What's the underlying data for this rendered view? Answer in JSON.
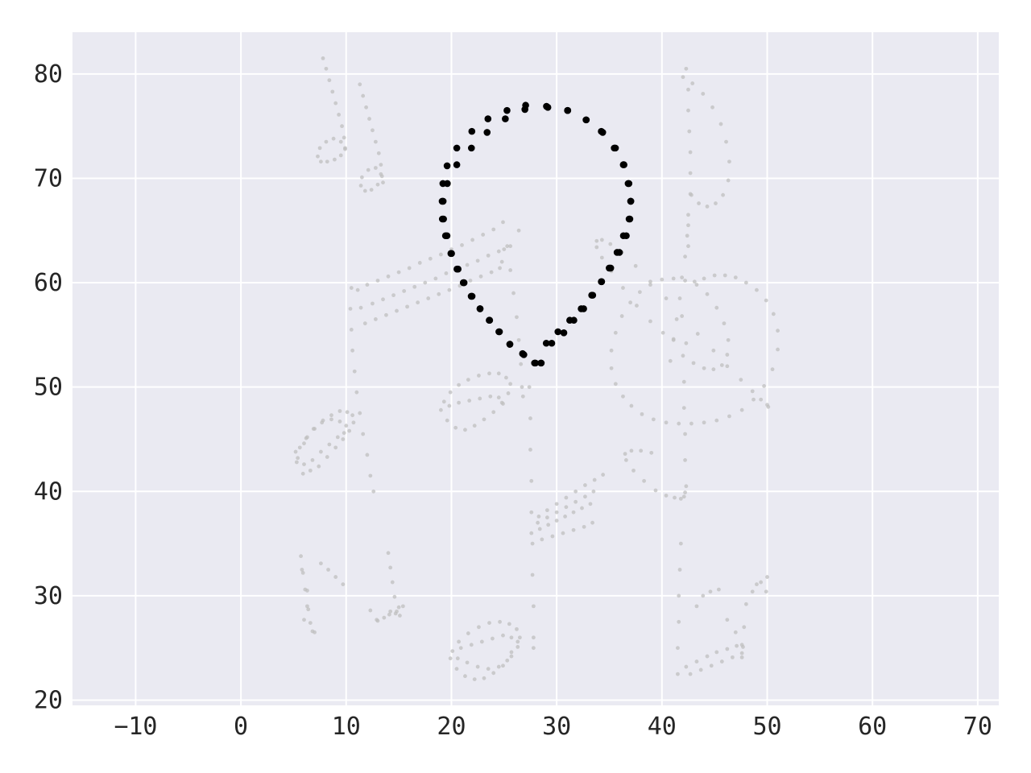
{
  "chart_data": {
    "type": "scatter",
    "title": "",
    "xlabel": "",
    "ylabel": "",
    "xlim": [
      -16,
      72
    ],
    "ylim": [
      19.5,
      84
    ],
    "x_ticks": [
      -10,
      0,
      10,
      20,
      30,
      40,
      50,
      60,
      70
    ],
    "y_ticks": [
      20,
      30,
      40,
      50,
      60,
      70,
      80
    ],
    "x_tick_labels": [
      "−10",
      "0",
      "10",
      "20",
      "30",
      "40",
      "50",
      "60",
      "70"
    ],
    "y_tick_labels": [
      "20",
      "30",
      "40",
      "50",
      "60",
      "70",
      "80"
    ],
    "grid": true,
    "legend": "none",
    "colors": {
      "background": "#eaeaf2",
      "grid": "#ffffff",
      "foreground_points": "#000000",
      "background_points": "#bfbfbf"
    },
    "series": [
      {
        "role": "figure-eight",
        "color": "#000000",
        "x": [
          27.05,
          29.03,
          31.05,
          32.79,
          34.24,
          35.47,
          36.33,
          36.79,
          37.04,
          36.95,
          36.61,
          35.96,
          35.13,
          34.27,
          33.33,
          32.33,
          31.24,
          30.12,
          29.01,
          28.53,
          27.9,
          26.76,
          25.55,
          24.56,
          23.63,
          22.72,
          21.88,
          21.13,
          20.53,
          19.95,
          19.44,
          19.14,
          19.21,
          19.61,
          20.51,
          21.9,
          23.39,
          25.12,
          26.98,
          29.16,
          31.03,
          32.81,
          34.37,
          35.58,
          36.39,
          36.86,
          37.03,
          36.88,
          36.34,
          35.74,
          34.99,
          34.24,
          33.42,
          32.56,
          31.63,
          30.68,
          29.53,
          28.5,
          27.98,
          26.88,
          25.55,
          24.51,
          23.59,
          22.72,
          21.96,
          21.2,
          20.63,
          20.01,
          19.58,
          19.25,
          19.12,
          19.19,
          19.59,
          20.51,
          21.94,
          23.47,
          25.28
        ],
        "y": [
          77.0,
          76.9,
          76.5,
          75.6,
          74.5,
          72.9,
          71.3,
          69.5,
          67.8,
          66.1,
          64.5,
          62.9,
          61.4,
          60.1,
          58.8,
          57.5,
          56.4,
          55.3,
          54.2,
          52.3,
          52.3,
          53.2,
          54.1,
          55.3,
          56.4,
          57.5,
          58.7,
          60.0,
          61.3,
          62.8,
          64.5,
          66.1,
          67.8,
          69.5,
          71.3,
          72.9,
          74.4,
          75.7,
          76.6,
          76.8,
          76.5,
          75.6,
          74.4,
          72.9,
          71.3,
          69.5,
          67.8,
          66.1,
          64.5,
          62.9,
          61.4,
          60.1,
          58.8,
          57.5,
          56.4,
          55.2,
          54.2,
          52.3,
          52.3,
          53.1,
          54.1,
          55.3,
          56.4,
          57.5,
          58.7,
          60.0,
          61.3,
          62.8,
          64.5,
          66.1,
          67.8,
          69.5,
          71.2,
          72.9,
          74.5,
          75.7,
          76.5
        ]
      },
      {
        "role": "music-notes",
        "color": "#bfbfbf",
        "x": [
          7.8,
          8.1,
          8.4,
          8.7,
          9.0,
          9.3,
          9.6,
          9.8,
          9.9,
          9.5,
          8.9,
          8.2,
          7.6,
          7.3,
          7.5,
          8.1,
          8.8,
          9.5,
          9.9,
          11.3,
          11.6,
          11.9,
          12.2,
          12.5,
          12.8,
          13.1,
          13.3,
          13.4,
          13.0,
          12.4,
          11.8,
          11.4,
          11.5,
          12.1,
          12.8,
          13.3,
          13.5,
          10.5,
          10.4,
          10.5,
          10.6,
          10.8,
          11.0,
          11.3,
          11.6,
          12.0,
          12.3,
          12.6,
          11.1,
          12.0,
          13.0,
          14.0,
          15.0,
          16.0,
          17.0,
          18.0,
          19.0,
          20.0,
          21.0,
          22.0,
          23.0,
          24.0,
          24.9,
          11.4,
          12.5,
          13.5,
          14.5,
          15.5,
          16.5,
          17.5,
          18.5,
          19.5,
          20.5,
          21.5,
          22.5,
          23.5,
          24.5,
          25.0,
          11.8,
          12.8,
          13.8,
          14.8,
          15.8,
          16.8,
          17.8,
          18.8,
          19.8,
          20.8,
          21.8,
          22.8,
          23.8,
          24.6,
          25.3,
          25.6,
          25.9,
          26.2,
          26.4,
          26.6,
          26.7,
          26.8,
          24.8,
          25.6,
          26.4,
          5.3,
          5.9,
          6.6,
          7.4,
          8.2,
          9.0,
          9.7,
          10.3,
          10.7,
          10.6,
          10.1,
          9.4,
          8.6,
          7.8,
          7.0,
          6.2,
          5.6,
          5.2,
          5.4,
          6.0,
          6.8,
          7.6,
          8.4,
          9.2,
          9.8,
          10.0,
          9.4,
          8.6,
          7.7,
          6.9,
          6.3,
          6.0,
          19.0,
          19.6,
          20.4,
          21.3,
          22.2,
          23.1,
          24.0,
          24.8,
          25.4,
          25.6,
          25.2,
          24.5,
          23.6,
          22.6,
          21.6,
          20.7,
          19.9,
          19.3,
          19.8,
          20.7,
          21.7,
          22.7,
          23.7,
          24.5,
          24.9,
          27.4,
          27.5,
          27.5,
          27.6,
          27.6,
          27.7,
          27.7,
          27.8,
          27.8,
          27.8,
          28.3,
          29.1,
          30.0,
          30.9,
          31.8,
          32.7,
          33.6,
          34.4,
          28.2,
          29.1,
          30.0,
          30.9,
          31.8,
          32.7,
          33.5,
          27.6,
          28.4,
          29.2,
          30.0,
          30.8,
          31.6,
          32.4,
          33.2,
          28.6,
          29.6,
          30.6,
          31.6,
          32.6,
          33.4,
          19.9,
          20.5,
          21.3,
          22.2,
          23.1,
          24.0,
          24.9,
          25.7,
          26.3,
          26.5,
          26.2,
          25.5,
          24.6,
          23.6,
          22.6,
          21.6,
          20.7,
          20.1,
          20.6,
          21.5,
          22.5,
          23.5,
          24.5,
          25.3,
          25.7,
          20.9,
          21.9,
          22.9,
          23.9,
          24.9,
          25.7,
          26.3,
          42.3,
          42.5,
          42.5,
          42.6,
          42.7,
          42.7,
          42.7,
          42.5,
          42.4,
          42.2,
          41.9,
          41.7,
          41.4,
          41.1,
          40.8,
          42.0,
          42.9,
          43.9,
          44.8,
          45.6,
          46.1,
          46.4,
          46.3,
          45.8,
          45.1,
          44.3,
          43.5,
          42.8,
          42.5,
          42.5,
          43.1,
          44.0,
          45.0,
          46.0,
          47.0,
          48.0,
          49.0,
          49.9,
          50.6,
          51.0,
          51.0,
          50.5,
          49.7,
          48.7,
          47.6,
          46.4,
          45.2,
          44.0,
          42.8,
          41.6,
          40.4,
          39.2,
          38.1,
          37.1,
          36.3,
          35.6,
          35.2,
          35.2,
          35.6,
          36.2,
          37.0,
          37.9,
          38.9,
          40.0,
          41.1,
          42.2,
          43.3,
          44.3,
          45.2,
          45.9,
          46.3,
          46.2,
          45.7,
          44.9,
          44.0,
          43.0,
          42.3,
          41.1,
          40.1,
          38.9,
          37.6,
          36.3,
          35.2,
          34.3,
          33.8,
          33.8,
          34.3,
          35.1,
          36.2,
          37.5,
          38.9,
          40.4,
          41.9,
          43.4,
          44.9,
          46.2,
          47.5,
          48.6,
          49.4,
          50.0,
          50.1,
          42.0,
          42.1,
          42.1,
          42.2,
          42.2,
          42.3,
          42.2,
          42.1,
          41.8,
          41.2,
          40.4,
          39.4,
          38.3,
          37.3,
          36.6,
          36.5,
          37.1,
          38.0,
          39.0,
          41.5,
          41.5,
          41.6,
          41.6,
          41.7,
          41.8,
          42.3,
          43.3,
          44.3,
          45.2,
          46.2,
          47.1,
          42.7,
          43.7,
          44.7,
          45.7,
          46.7,
          47.6,
          43.3,
          43.9,
          44.6,
          45.4,
          46.2,
          47.0,
          47.6,
          47.6,
          47.7,
          47.8,
          48.0,
          48.6,
          49.4,
          50.0,
          49.0,
          49.9,
          5.7,
          5.9,
          6.1,
          6.3,
          6.6,
          6.8,
          7.0,
          7.6,
          8.3,
          9.0,
          9.7,
          5.8,
          6.3,
          6.4,
          6.0,
          14.0,
          14.2,
          14.4,
          14.6,
          14.8,
          15.0,
          15.1,
          14.7,
          14.2,
          13.6,
          12.9,
          12.3,
          13.0,
          14.1,
          15.4
        ],
        "y": [
          81.5,
          80.5,
          79.4,
          78.3,
          77.2,
          76.1,
          75.0,
          73.9,
          72.8,
          72.2,
          71.8,
          71.6,
          71.6,
          72.1,
          72.9,
          73.5,
          73.8,
          73.5,
          72.9,
          79.0,
          77.9,
          76.8,
          75.7,
          74.6,
          73.5,
          72.4,
          71.3,
          70.2,
          69.4,
          68.9,
          68.8,
          69.3,
          70.1,
          70.8,
          71.0,
          70.4,
          69.6,
          59.5,
          57.5,
          55.5,
          53.5,
          51.5,
          49.5,
          47.5,
          45.5,
          43.5,
          41.5,
          40.0,
          59.3,
          59.8,
          60.2,
          60.6,
          61.0,
          61.4,
          61.9,
          62.3,
          62.7,
          63.2,
          63.6,
          64.1,
          64.6,
          65.1,
          65.8,
          57.6,
          58.0,
          58.4,
          58.8,
          59.2,
          59.6,
          60.0,
          60.4,
          60.9,
          61.3,
          61.7,
          62.1,
          62.6,
          63.0,
          63.2,
          56.1,
          56.5,
          56.9,
          57.3,
          57.7,
          58.1,
          58.5,
          58.9,
          59.3,
          59.7,
          60.2,
          60.6,
          61.0,
          61.4,
          63.5,
          61.2,
          59.0,
          56.7,
          54.5,
          52.2,
          50.0,
          49.1,
          62.0,
          63.5,
          65.0,
          42.8,
          41.7,
          42.0,
          42.4,
          43.3,
          44.2,
          45.0,
          45.8,
          46.6,
          47.3,
          47.6,
          47.7,
          47.3,
          46.8,
          46.0,
          45.1,
          44.2,
          43.8,
          43.2,
          42.6,
          43.0,
          43.8,
          44.5,
          45.2,
          45.6,
          46.3,
          46.7,
          46.9,
          46.6,
          46.0,
          45.2,
          44.6,
          47.8,
          46.8,
          46.1,
          45.9,
          46.3,
          46.9,
          47.6,
          48.5,
          49.4,
          50.3,
          50.9,
          51.3,
          51.3,
          51.1,
          50.7,
          50.2,
          49.5,
          48.6,
          48.2,
          48.5,
          48.7,
          48.9,
          49.1,
          49.0,
          48.4,
          50.0,
          47.0,
          44.0,
          41.0,
          38.0,
          35.0,
          32.0,
          29.0,
          26.0,
          25.0,
          37.6,
          38.2,
          38.8,
          39.4,
          40.0,
          40.6,
          41.1,
          41.6,
          37.0,
          37.5,
          38.0,
          38.5,
          39.0,
          39.5,
          40.0,
          36.0,
          36.4,
          36.8,
          37.2,
          37.6,
          38.0,
          38.4,
          38.8,
          35.4,
          35.7,
          36.0,
          36.3,
          36.6,
          37.0,
          24.0,
          23.0,
          22.3,
          22.0,
          22.1,
          22.6,
          23.3,
          24.2,
          25.1,
          26.0,
          26.8,
          27.3,
          27.5,
          27.4,
          27.0,
          26.4,
          25.6,
          24.7,
          24.0,
          23.6,
          23.2,
          23.0,
          23.2,
          23.8,
          24.6,
          25.0,
          25.3,
          25.6,
          25.9,
          26.2,
          26.0,
          25.6,
          80.5,
          78.5,
          76.5,
          74.5,
          72.5,
          70.5,
          68.5,
          66.5,
          64.5,
          62.5,
          60.5,
          58.5,
          56.5,
          54.5,
          52.5,
          79.7,
          79.1,
          78.1,
          76.8,
          75.2,
          73.5,
          71.6,
          69.8,
          68.4,
          67.6,
          67.3,
          67.6,
          68.4,
          65.5,
          63.5,
          60.1,
          60.4,
          60.7,
          60.7,
          60.5,
          60.0,
          59.3,
          58.3,
          57.0,
          55.4,
          53.6,
          51.7,
          50.1,
          48.8,
          47.8,
          47.2,
          46.8,
          46.6,
          46.5,
          46.5,
          46.6,
          46.9,
          47.4,
          48.2,
          49.1,
          50.3,
          51.8,
          53.5,
          55.2,
          56.8,
          58.1,
          59.1,
          59.8,
          60.3,
          60.4,
          60.2,
          59.8,
          58.9,
          57.6,
          56.1,
          54.5,
          53.1,
          52.1,
          51.7,
          51.8,
          52.3,
          54.2,
          54.6,
          55.2,
          56.3,
          57.8,
          59.5,
          61.1,
          62.4,
          63.4,
          64.0,
          64.1,
          63.7,
          62.9,
          61.6,
          60.1,
          58.5,
          56.8,
          55.1,
          53.5,
          52.0,
          50.7,
          49.6,
          48.8,
          48.3,
          48.1,
          53.0,
          50.5,
          48.0,
          45.5,
          43.0,
          40.5,
          39.9,
          39.5,
          39.3,
          39.4,
          39.6,
          40.1,
          41.0,
          42.0,
          43.0,
          43.6,
          43.9,
          43.9,
          43.7,
          22.5,
          25.0,
          27.5,
          30.0,
          32.5,
          35.0,
          23.2,
          23.7,
          24.2,
          24.6,
          24.9,
          25.2,
          22.5,
          22.9,
          23.3,
          23.7,
          24.1,
          24.5,
          29.0,
          30.0,
          30.4,
          30.6,
          27.7,
          26.5,
          25.3,
          24.1,
          25.1,
          27.0,
          29.2,
          30.4,
          31.3,
          31.8,
          31.1,
          30.4,
          33.8,
          32.2,
          30.6,
          29.0,
          27.4,
          26.6,
          26.5,
          33.1,
          32.5,
          31.8,
          31.1,
          32.5,
          30.5,
          28.7,
          27.7,
          34.1,
          32.7,
          31.3,
          29.9,
          28.5,
          28.9,
          28.1,
          28.3,
          28.5,
          27.9,
          27.7,
          28.6,
          27.6,
          28.2,
          29.0
        ]
      }
    ]
  }
}
